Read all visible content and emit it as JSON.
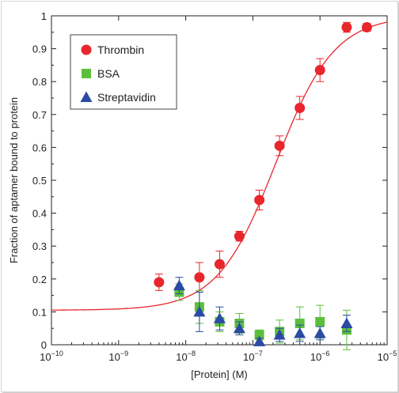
{
  "chart_data": {
    "type": "scatter",
    "xscale": "log",
    "xlim": [
      1e-10,
      1e-05
    ],
    "ylim": [
      0,
      1
    ],
    "xlabel": "[Protein] (M)",
    "ylabel": "Fraction of aptamer bound to protein",
    "grid": false,
    "legend_position": "top-left",
    "x_ticks": [
      {
        "value": 1e-10,
        "base": "10",
        "exp": "−10"
      },
      {
        "value": 1e-09,
        "base": "10",
        "exp": "−9"
      },
      {
        "value": 1e-08,
        "base": "10",
        "exp": "−8"
      },
      {
        "value": 1e-07,
        "base": "10",
        "exp": "−7"
      },
      {
        "value": 1e-06,
        "base": "10",
        "exp": "−6"
      },
      {
        "value": 1e-05,
        "base": "10",
        "exp": "−5"
      }
    ],
    "y_ticks": [
      {
        "value": 0,
        "label": "0"
      },
      {
        "value": 0.1,
        "label": "0.1"
      },
      {
        "value": 0.2,
        "label": "0.2"
      },
      {
        "value": 0.3,
        "label": "0.3"
      },
      {
        "value": 0.4,
        "label": "0.4"
      },
      {
        "value": 0.5,
        "label": "0.5"
      },
      {
        "value": 0.6,
        "label": "0.6"
      },
      {
        "value": 0.7,
        "label": "0.7"
      },
      {
        "value": 0.8,
        "label": "0.8"
      },
      {
        "value": 0.9,
        "label": "0.9"
      },
      {
        "value": 1,
        "label": "1"
      }
    ],
    "series": [
      {
        "name": "Thrombin",
        "marker": "circle",
        "color": "#e8262c",
        "points": [
          {
            "x": 4e-09,
            "y": 0.19,
            "err": 0.025
          },
          {
            "x": 1.6e-08,
            "y": 0.205,
            "err": 0.045
          },
          {
            "x": 3.2e-08,
            "y": 0.245,
            "err": 0.04
          },
          {
            "x": 6.3e-08,
            "y": 0.33,
            "err": 0.015
          },
          {
            "x": 1.25e-07,
            "y": 0.44,
            "err": 0.03
          },
          {
            "x": 2.5e-07,
            "y": 0.605,
            "err": 0.03
          },
          {
            "x": 5e-07,
            "y": 0.72,
            "err": 0.035
          },
          {
            "x": 1e-06,
            "y": 0.835,
            "err": 0.035
          },
          {
            "x": 2.5e-06,
            "y": 0.965,
            "err": 0.015
          },
          {
            "x": 5e-06,
            "y": 0.965,
            "err": 0.012
          }
        ]
      },
      {
        "name": "BSA",
        "marker": "square",
        "color": "#5cbf3c",
        "points": [
          {
            "x": 8e-09,
            "y": 0.16,
            "err": 0.025
          },
          {
            "x": 1.6e-08,
            "y": 0.115,
            "err": 0.05
          },
          {
            "x": 3.2e-08,
            "y": 0.07,
            "err": 0.03
          },
          {
            "x": 6.3e-08,
            "y": 0.065,
            "err": 0.03
          },
          {
            "x": 1.25e-07,
            "y": 0.03,
            "err": 0.015
          },
          {
            "x": 2.5e-07,
            "y": 0.04,
            "err": 0.035
          },
          {
            "x": 5e-07,
            "y": 0.065,
            "err": 0.05
          },
          {
            "x": 1e-06,
            "y": 0.07,
            "err": 0.05
          },
          {
            "x": 2.5e-06,
            "y": 0.045,
            "err": 0.06
          }
        ]
      },
      {
        "name": "Streptavidin",
        "marker": "triangle",
        "color": "#2b4aa3",
        "points": [
          {
            "x": 8e-09,
            "y": 0.18,
            "err": 0.025
          },
          {
            "x": 1.6e-08,
            "y": 0.1,
            "err": 0.06
          },
          {
            "x": 3.2e-08,
            "y": 0.08,
            "err": 0.035
          },
          {
            "x": 6.3e-08,
            "y": 0.05,
            "err": 0.02
          },
          {
            "x": 1.25e-07,
            "y": 0.01,
            "err": 0.01
          },
          {
            "x": 2.5e-07,
            "y": 0.03,
            "err": 0.02
          },
          {
            "x": 5e-07,
            "y": 0.035,
            "err": 0.025
          },
          {
            "x": 1e-06,
            "y": 0.035,
            "err": 0.02
          },
          {
            "x": 2.5e-06,
            "y": 0.065,
            "err": 0.025
          }
        ]
      }
    ],
    "fit_curve": {
      "series": "Thrombin",
      "color": "#e8262c",
      "model": "hill",
      "bottom": 0.105,
      "top": 1.0,
      "ec50": 2.2e-07,
      "hill": 1.0
    }
  }
}
